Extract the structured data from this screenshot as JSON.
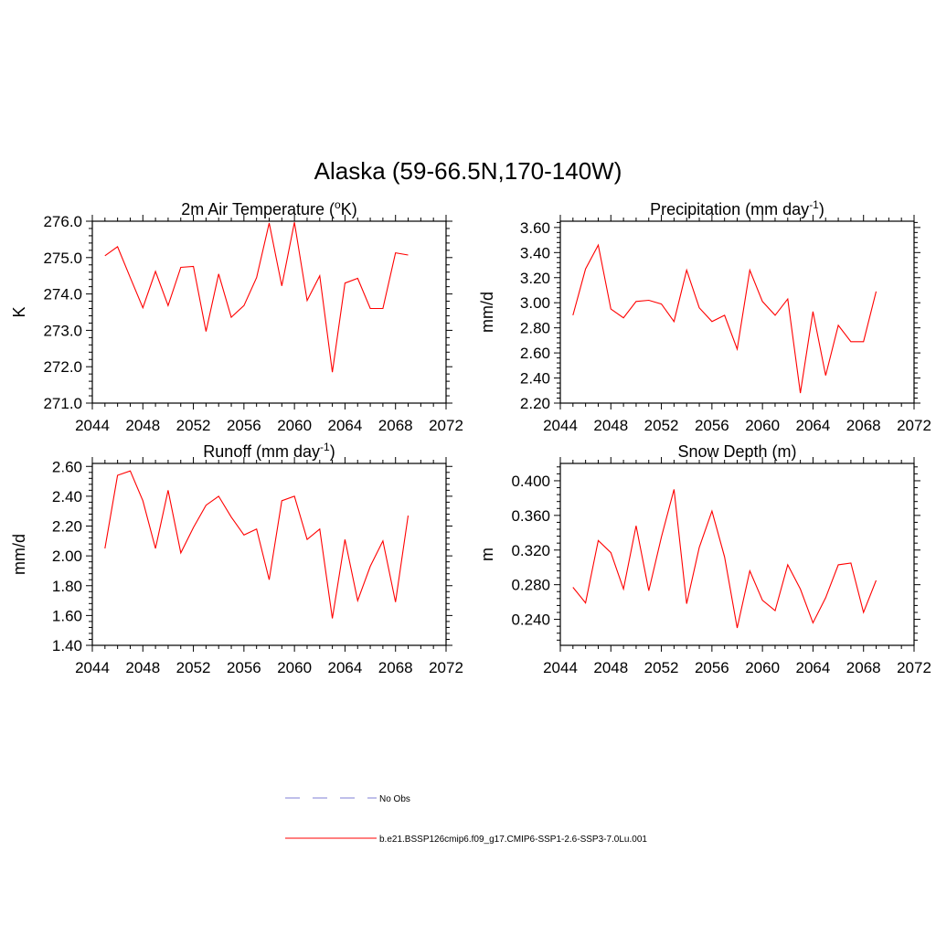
{
  "main_title": "Alaska (59-66.5N,170-140W)",
  "line_color": "#ff0000",
  "obs_line_color": "#9999dd",
  "legend": {
    "obs_label": "No Obs",
    "model_label": "b.e21.BSSP126cmip6.f09_g17.CMIP6-SSP1-2.6-SSP3-7.0Lu.001"
  },
  "chart_data": [
    {
      "type": "line",
      "title": "2m Air Temperature (",
      "title_sup": "o",
      "title_rest": "K)",
      "ylabel": "K",
      "xlim": [
        2044,
        2072
      ],
      "ylim": [
        271.0,
        276.0
      ],
      "xticks": [
        2044,
        2048,
        2052,
        2056,
        2060,
        2064,
        2068,
        2072
      ],
      "yticks": [
        271.0,
        272.0,
        273.0,
        274.0,
        275.0,
        276.0
      ],
      "ytick_labels": [
        "271.0",
        "272.0",
        "273.0",
        "274.0",
        "275.0",
        "276.0"
      ],
      "x": [
        2045,
        2046,
        2047,
        2048,
        2049,
        2050,
        2051,
        2052,
        2053,
        2054,
        2055,
        2056,
        2057,
        2058,
        2059,
        2060,
        2061,
        2062,
        2063,
        2064,
        2065,
        2066,
        2067,
        2068,
        2069
      ],
      "values": [
        275.05,
        275.3,
        274.45,
        273.62,
        274.62,
        273.68,
        274.73,
        274.76,
        272.97,
        274.55,
        273.36,
        273.68,
        274.45,
        275.95,
        274.22,
        275.97,
        273.82,
        274.5,
        271.85,
        274.3,
        274.43,
        273.6,
        273.6,
        275.13,
        275.07
      ]
    },
    {
      "type": "line",
      "title": "Precipitation (mm day",
      "title_sup": "-1",
      "title_rest": ")",
      "ylabel": "mm/d",
      "xlim": [
        2044,
        2072
      ],
      "ylim": [
        2.2,
        3.65
      ],
      "xticks": [
        2044,
        2048,
        2052,
        2056,
        2060,
        2064,
        2068,
        2072
      ],
      "yticks": [
        2.2,
        2.4,
        2.6,
        2.8,
        3.0,
        3.2,
        3.4,
        3.6
      ],
      "ytick_labels": [
        "2.20",
        "2.40",
        "2.60",
        "2.80",
        "3.00",
        "3.20",
        "3.40",
        "3.60"
      ],
      "x": [
        2045,
        2046,
        2047,
        2048,
        2049,
        2050,
        2051,
        2052,
        2053,
        2054,
        2055,
        2056,
        2057,
        2058,
        2059,
        2060,
        2061,
        2062,
        2063,
        2064,
        2065,
        2066,
        2067,
        2068,
        2069
      ],
      "values": [
        2.9,
        3.27,
        3.46,
        2.95,
        2.88,
        3.01,
        3.02,
        2.99,
        2.85,
        3.26,
        2.96,
        2.85,
        2.9,
        2.63,
        3.26,
        3.01,
        2.9,
        3.03,
        2.28,
        2.93,
        2.42,
        2.82,
        2.69,
        2.69,
        3.09
      ]
    },
    {
      "type": "line",
      "title": "Runoff (mm day",
      "title_sup": "-1",
      "title_rest": ")",
      "ylabel": "mm/d",
      "xlim": [
        2044,
        2072
      ],
      "ylim": [
        1.4,
        2.62
      ],
      "xticks": [
        2044,
        2048,
        2052,
        2056,
        2060,
        2064,
        2068,
        2072
      ],
      "yticks": [
        1.4,
        1.6,
        1.8,
        2.0,
        2.2,
        2.4,
        2.6
      ],
      "ytick_labels": [
        "1.40",
        "1.60",
        "1.80",
        "2.00",
        "2.20",
        "2.40",
        "2.60"
      ],
      "x": [
        2045,
        2046,
        2047,
        2048,
        2049,
        2050,
        2051,
        2052,
        2053,
        2054,
        2055,
        2056,
        2057,
        2058,
        2059,
        2060,
        2061,
        2062,
        2063,
        2064,
        2065,
        2066,
        2067,
        2068,
        2069
      ],
      "values": [
        2.05,
        2.54,
        2.57,
        2.37,
        2.05,
        2.44,
        2.02,
        2.19,
        2.34,
        2.4,
        2.26,
        2.14,
        2.18,
        1.84,
        2.37,
        2.4,
        2.11,
        2.18,
        1.58,
        2.11,
        1.7,
        1.93,
        2.1,
        1.69,
        2.27
      ]
    },
    {
      "type": "line",
      "title": "Snow Depth (m)",
      "title_sup": "",
      "title_rest": "",
      "ylabel": "m",
      "xlim": [
        2044,
        2072
      ],
      "ylim": [
        0.21,
        0.42
      ],
      "xticks": [
        2044,
        2048,
        2052,
        2056,
        2060,
        2064,
        2068,
        2072
      ],
      "yticks": [
        0.24,
        0.28,
        0.32,
        0.36,
        0.4
      ],
      "ytick_labels": [
        "0.240",
        "0.280",
        "0.320",
        "0.360",
        "0.400"
      ],
      "x": [
        2045,
        2046,
        2047,
        2048,
        2049,
        2050,
        2051,
        2052,
        2053,
        2054,
        2055,
        2056,
        2057,
        2058,
        2059,
        2060,
        2061,
        2062,
        2063,
        2064,
        2065,
        2066,
        2067,
        2068,
        2069
      ],
      "values": [
        0.277,
        0.259,
        0.331,
        0.317,
        0.275,
        0.348,
        0.273,
        0.335,
        0.39,
        0.258,
        0.323,
        0.365,
        0.312,
        0.23,
        0.296,
        0.262,
        0.25,
        0.303,
        0.275,
        0.236,
        0.265,
        0.303,
        0.305,
        0.248,
        0.285
      ]
    }
  ]
}
